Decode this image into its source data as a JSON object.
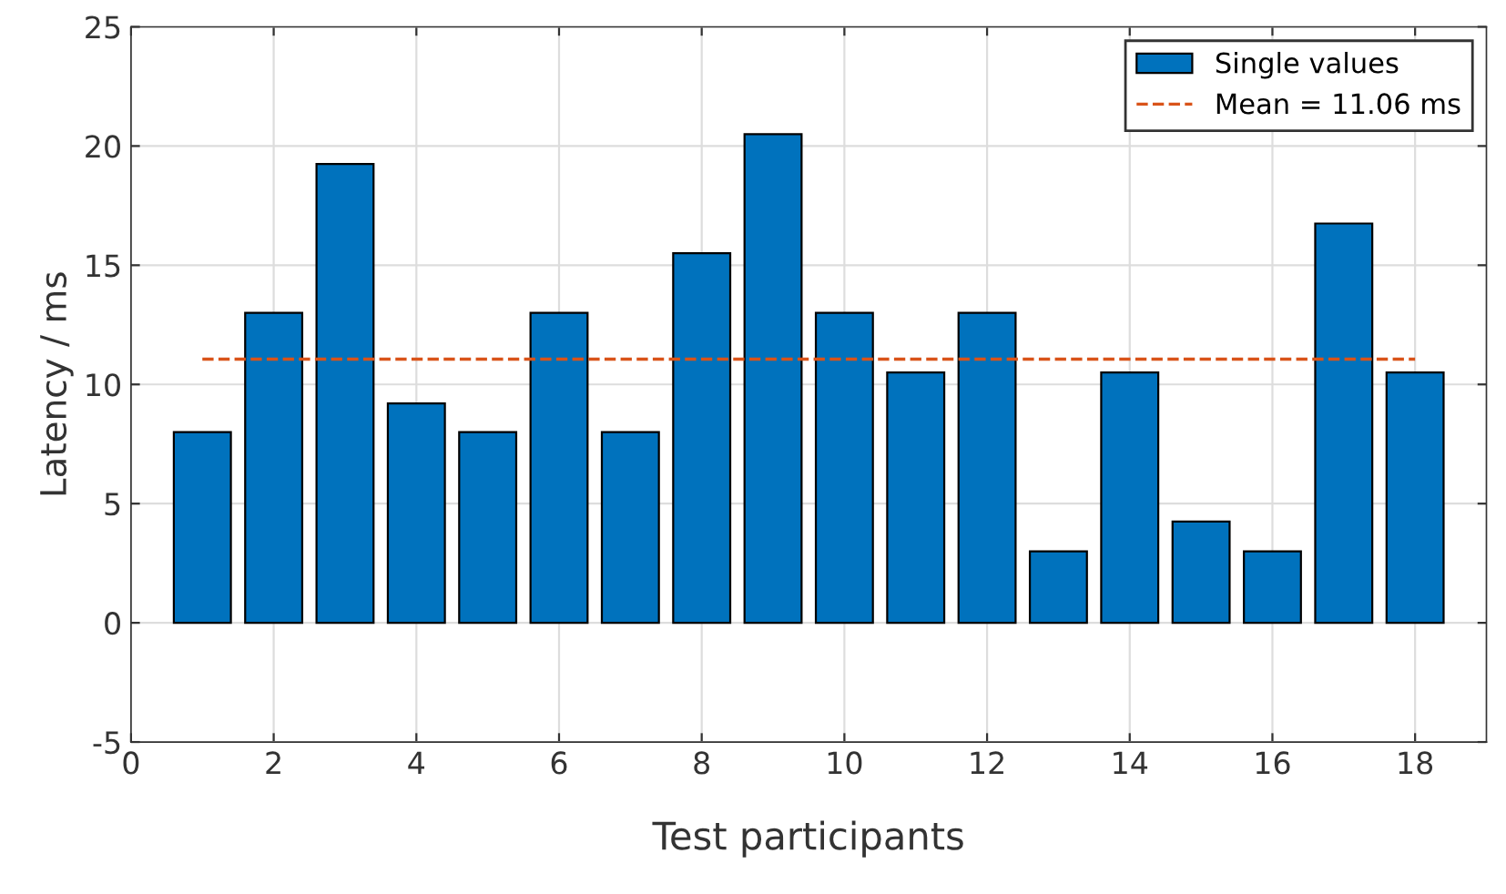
{
  "chart_data": {
    "type": "bar",
    "xlabel": "Test participants",
    "ylabel": "Latency / ms",
    "xlim": [
      0,
      19
    ],
    "xticks": [
      0,
      2,
      4,
      6,
      8,
      10,
      12,
      14,
      16,
      18
    ],
    "ylim": [
      -5,
      25
    ],
    "yticks": [
      -5,
      0,
      5,
      10,
      15,
      20,
      25
    ],
    "grid": true,
    "legend": "top right",
    "series": [
      {
        "name": "Single values",
        "color": "#0072bd",
        "x": [
          1,
          2,
          3,
          4,
          5,
          6,
          7,
          8,
          9,
          10,
          11,
          12,
          13,
          14,
          15,
          16,
          17,
          18
        ],
        "values": [
          8,
          13,
          19.25,
          9.2,
          8,
          13,
          8,
          15.5,
          20.5,
          13,
          10.5,
          13,
          3,
          10.5,
          4.25,
          3,
          16.75,
          10.5
        ]
      },
      {
        "name": "Mean = 11.06 ms",
        "type": "line",
        "color": "#d95319",
        "line_style": "dashed",
        "x": [
          1,
          18
        ],
        "values": [
          11.06,
          11.06
        ]
      }
    ]
  }
}
